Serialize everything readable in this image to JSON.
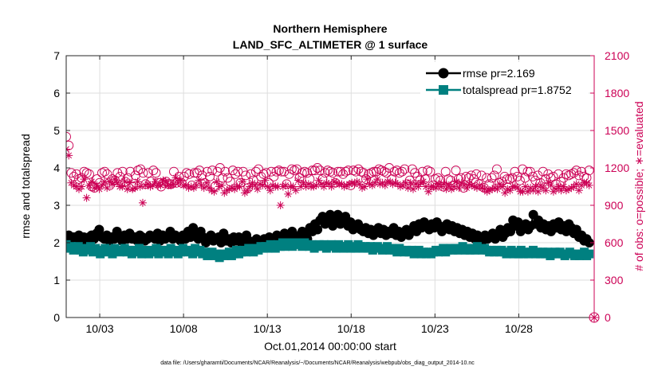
{
  "chart_data": {
    "type": "line",
    "title_line1": "Northern Hemisphere",
    "title_line2": "LAND_SFC_ALTIMETER @ 1 surface",
    "xlabel": "Oct.01,2014 00:00:00 start",
    "ylabel_left": "rmse and totalspread",
    "ylabel_right": "# of obs: o=possible; ∗=evaluated",
    "footer": "data file: /Users/gharamti/Documents/NCAR/Reanalysis/~/Documents/NCAR/Reanalysis/webpub/obs_diag_output_2014-10.nc",
    "xlim": [
      1,
      32.5
    ],
    "ylim_left": [
      0,
      7
    ],
    "ylim_right": [
      0,
      2100
    ],
    "x_ticks": [
      3,
      8,
      13,
      18,
      23,
      28
    ],
    "x_tick_labels": [
      "10/03",
      "10/08",
      "10/13",
      "10/18",
      "10/23",
      "10/28"
    ],
    "y_left_ticks": [
      "0",
      "1",
      "2",
      "3",
      "4",
      "5",
      "6",
      "7"
    ],
    "y_right_ticks": [
      "0",
      "300",
      "600",
      "900",
      "1200",
      "1500",
      "1800",
      "2100"
    ],
    "legend": [
      {
        "label": "rmse pr=2.169",
        "color": "#000000",
        "marker": "circle"
      },
      {
        "label": "totalspread pr=1.8752",
        "color": "#008080",
        "marker": "square"
      }
    ],
    "colors": {
      "rmse": "#000000",
      "totalspread": "#008080",
      "obs": "#cc0055",
      "grid": "#dedede"
    },
    "series": [
      {
        "name": "rmse",
        "values": [
          2.15,
          2.2,
          2.05,
          2.15,
          2.1,
          2.2,
          2.0,
          2.15,
          2.05,
          2.15,
          2.2,
          2.1,
          2.25,
          2.35,
          2.15,
          2.1,
          2.2,
          2.05,
          2.15,
          2.1,
          2.3,
          2.15,
          2.05,
          2.2,
          2.1,
          2.25,
          2.1,
          2.15,
          2.05,
          2.2,
          2.15,
          2.05,
          2.1,
          2.2,
          2.15,
          2.1,
          2.25,
          2.05,
          2.2,
          2.1,
          2.15,
          2.3,
          2.1,
          2.2,
          2.15,
          2.05,
          2.2,
          2.1,
          2.3,
          2.15,
          2.4,
          2.2,
          2.1,
          2.3,
          2.15,
          2.0,
          2.1,
          2.2,
          2.05,
          2.1,
          2.15,
          2.0,
          2.25,
          2.05,
          2.1,
          2.0,
          2.15,
          2.05,
          2.15,
          2.0,
          2.1,
          2.2,
          2.05,
          1.9,
          2.0,
          2.1,
          1.95,
          2.0,
          2.1,
          2.0,
          2.15,
          1.95,
          2.05,
          2.2,
          2.0,
          2.1,
          2.25,
          2.1,
          2.0,
          2.3,
          2.15,
          2.05,
          2.2,
          2.3,
          2.25,
          2.1,
          2.4,
          2.3,
          2.5,
          2.35,
          2.6,
          2.7,
          2.5,
          2.6,
          2.75,
          2.45,
          2.6,
          2.75,
          2.5,
          2.65,
          2.7,
          2.45,
          2.55,
          2.35,
          2.4,
          2.5,
          2.35,
          2.3,
          2.4,
          2.25,
          2.35,
          2.2,
          2.3,
          2.4,
          2.25,
          2.35,
          2.2,
          2.3,
          2.25,
          2.4,
          2.2,
          2.3,
          2.15,
          2.25,
          2.35,
          2.2,
          2.3,
          2.45,
          2.3,
          2.5,
          2.4,
          2.55,
          2.45,
          2.35,
          2.5,
          2.4,
          2.55,
          2.45,
          2.3,
          2.4,
          2.5,
          2.35,
          2.45,
          2.3,
          2.4,
          2.25,
          2.35,
          2.2,
          2.3,
          2.15,
          2.25,
          2.1,
          2.2,
          2.15,
          2.05,
          2.2,
          2.1,
          2.15,
          2.25,
          2.1,
          2.2,
          2.35,
          2.15,
          2.25,
          2.4,
          2.3,
          2.6,
          2.45,
          2.55,
          2.3,
          2.4,
          2.5,
          2.35,
          2.45,
          2.75,
          2.5,
          2.6,
          2.4,
          2.5,
          2.35,
          2.45,
          2.3,
          2.5,
          2.4,
          2.55,
          2.35,
          2.45,
          2.3,
          2.5,
          2.4,
          2.25,
          2.35,
          2.15,
          2.2,
          2.05,
          2.1,
          2.0
        ]
      },
      {
        "name": "totalspread",
        "values": [
          1.95,
          1.85,
          1.9,
          1.8,
          1.85,
          1.9,
          1.8,
          1.75,
          1.85,
          1.8,
          1.9,
          1.75,
          1.85,
          1.8,
          1.7,
          1.8,
          1.85,
          1.75,
          1.8,
          1.7,
          1.85,
          1.8,
          1.75,
          1.8,
          1.85,
          1.75,
          1.8,
          1.7,
          1.8,
          1.75,
          1.85,
          1.7,
          1.8,
          1.75,
          1.7,
          1.8,
          1.75,
          1.85,
          1.7,
          1.8,
          1.75,
          1.8,
          1.7,
          1.85,
          1.75,
          1.8,
          1.7,
          1.75,
          1.85,
          1.8,
          1.75,
          1.8,
          1.7,
          1.85,
          1.75,
          1.8,
          1.7,
          1.75,
          1.65,
          1.7,
          1.75,
          1.65,
          1.7,
          1.6,
          1.7,
          1.65,
          1.7,
          1.75,
          1.65,
          1.7,
          1.8,
          1.7,
          1.75,
          1.8,
          1.75,
          1.85,
          1.8,
          1.75,
          1.85,
          1.8,
          1.9,
          1.85,
          1.9,
          1.85,
          1.95,
          1.9,
          1.85,
          1.95,
          1.9,
          2.0,
          1.9,
          1.95,
          2.0,
          1.9,
          1.95,
          2.0,
          1.95,
          1.9,
          2.0,
          1.95,
          1.9,
          1.95,
          1.85,
          1.9,
          1.95,
          1.9,
          1.95,
          1.85,
          1.9,
          1.95,
          1.9,
          1.85,
          1.95,
          1.9,
          1.85,
          1.9,
          1.95,
          1.85,
          1.9,
          1.85,
          1.95,
          1.9,
          1.85,
          1.9,
          1.85,
          1.9,
          1.8,
          1.85,
          1.9,
          1.85,
          1.8,
          1.85,
          1.9,
          1.8,
          1.85,
          1.8,
          1.75,
          1.85,
          1.8,
          1.75,
          1.8,
          1.75,
          1.8,
          1.7,
          1.75,
          1.8,
          1.7,
          1.75,
          1.7,
          1.75,
          1.7,
          1.75,
          1.8,
          1.75,
          1.8,
          1.85,
          1.75,
          1.8,
          1.85,
          1.8,
          1.85,
          1.8,
          1.85,
          1.9,
          1.8,
          1.85,
          1.8,
          1.85,
          1.8,
          1.9,
          1.85,
          1.8,
          1.85,
          1.8,
          1.75,
          1.8,
          1.75,
          1.8,
          1.75,
          1.8,
          1.75,
          1.7,
          1.75,
          1.8,
          1.7,
          1.75,
          1.7,
          1.8,
          1.7,
          1.75,
          1.7,
          1.75,
          1.8,
          1.7,
          1.75,
          1.7,
          1.75,
          1.7,
          1.75,
          1.65,
          1.7,
          1.75,
          1.7,
          1.75,
          1.7,
          1.65,
          1.7,
          1.75,
          1.7,
          1.65,
          1.7,
          1.65,
          1.7,
          1.75,
          1.65,
          1.7
        ]
      },
      {
        "name": "obs_possible",
        "axis": "right",
        "values": [
          1450,
          1380,
          1160,
          1130,
          1150,
          1110,
          1120,
          1170,
          1160,
          1150,
          1050,
          1040,
          1110,
          1080,
          1160,
          1170,
          1150,
          1060,
          1110,
          1100,
          1160,
          1130,
          1170,
          1090,
          1120,
          1170,
          1050,
          1140,
          1180,
          1190,
          1160,
          1070,
          1160,
          1090,
          1180,
          1160,
          1080,
          1050,
          1080,
          1090,
          1070,
          1070,
          1170,
          1080,
          1130,
          1080,
          1130,
          1160,
          1150,
          1060,
          1160,
          1160,
          1180,
          1140,
          1080,
          1170,
          1130,
          1180,
          1050,
          1170,
          1200,
          1120,
          1170,
          1120,
          1090,
          1180,
          1150,
          1170,
          1080,
          1170,
          1140,
          1040,
          1150,
          1100,
          1170,
          1190,
          1130,
          1150,
          1160,
          1080,
          1170,
          1130,
          1170,
          1180,
          1170,
          1170,
          1070,
          1150,
          1190,
          1180,
          1190,
          1120,
          1160,
          1170,
          1160,
          1110,
          1180,
          1180,
          1200,
          1180,
          1110,
          1160,
          1180,
          1170,
          1160,
          1080,
          1170,
          1170,
          1150,
          1170,
          1180,
          1060,
          1180,
          1170,
          1190,
          1170,
          1160,
          1110,
          1150,
          1160,
          1170,
          1170,
          1190,
          1180,
          1170,
          1160,
          1200,
          1110,
          1170,
          1180,
          1160,
          1170,
          1190,
          1070,
          1100,
          1190,
          1160,
          1130,
          1100,
          1170,
          1110,
          1180,
          1170,
          1060,
          1110,
          1120,
          1100,
          1050,
          1170,
          1110,
          1100,
          1060,
          1180,
          1110,
          1120,
          1040,
          1130,
          1120,
          1140,
          1110,
          1150,
          1070,
          1140,
          1040,
          1120,
          1070,
          1120,
          1140,
          1190,
          1080,
          1090,
          1130,
          1110,
          1110,
          1120,
          1170,
          1130,
          1100,
          1190,
          1120,
          1170,
          1170,
          1130,
          1100,
          1140,
          1080,
          1170,
          1110,
          1150,
          1120,
          1130,
          1070,
          1150,
          1090,
          1120,
          1150,
          1140,
          1150,
          1160,
          1180,
          1140,
          1170,
          1130,
          1120,
          1180
        ]
      },
      {
        "name": "obs_evaluated",
        "axis": "right",
        "values": [
          1350,
          1300,
          1080,
          1060,
          1050,
          1030,
          1050,
          1110,
          960,
          1060,
          1090,
          1040,
          1060,
          1030,
          1060,
          1090,
          1040,
          1090,
          1070,
          1110,
          1080,
          1050,
          1050,
          1090,
          1030,
          1080,
          1030,
          1040,
          1090,
          1050,
          920,
          1060,
          1070,
          1050,
          1060,
          1090,
          1060,
          1060,
          1100,
          1090,
          1060,
          1060,
          1070,
          1120,
          1080,
          1100,
          1060,
          1060,
          1040,
          1050,
          1040,
          1060,
          1100,
          1060,
          1040,
          1080,
          1040,
          1020,
          1010,
          1090,
          1050,
          1060,
          1000,
          1020,
          1030,
          1040,
          1030,
          1050,
          1050,
          1090,
          1000,
          1020,
          1050,
          1080,
          1060,
          1030,
          1070,
          1060,
          1100,
          1050,
          1020,
          1060,
          1050,
          1050,
          900,
          1050,
          1060,
          990,
          1050,
          1050,
          1020,
          1100,
          1050,
          1080,
          1050,
          1070,
          1050,
          1050,
          1060,
          1100,
          1070,
          1050,
          1080,
          1070,
          1050,
          1090,
          1080,
          1070,
          1070,
          1050,
          1060,
          1070,
          1080,
          1070,
          1090,
          1070,
          1040,
          1050,
          1110,
          1070,
          1060,
          1080,
          1110,
          1070,
          1080,
          1060,
          1090,
          1090,
          1070,
          1080,
          1070,
          1050,
          1060,
          1080,
          1040,
          1080,
          1030,
          1070,
          1050,
          1080,
          1090,
          1050,
          1010,
          1050,
          1050,
          1040,
          1070,
          1050,
          1070,
          1030,
          1060,
          1030,
          1050,
          1090,
          1040,
          1080,
          1060,
          1040,
          1070,
          1060,
          1050,
          1040,
          1060,
          1040,
          1030,
          1010,
          1020,
          1030,
          1040,
          1030,
          1070,
          1050,
          1000,
          1030,
          1020,
          1050,
          1050,
          1040,
          1010,
          1010,
          1050,
          1010,
          1040,
          1020,
          1050,
          1010,
          1060,
          1040,
          1020,
          1080,
          1060,
          1010,
          1030,
          1050,
          1020,
          1050,
          1020,
          1030,
          1040,
          1050,
          1070,
          1020,
          1060,
          1080,
          1080,
          1060
        ]
      }
    ]
  }
}
